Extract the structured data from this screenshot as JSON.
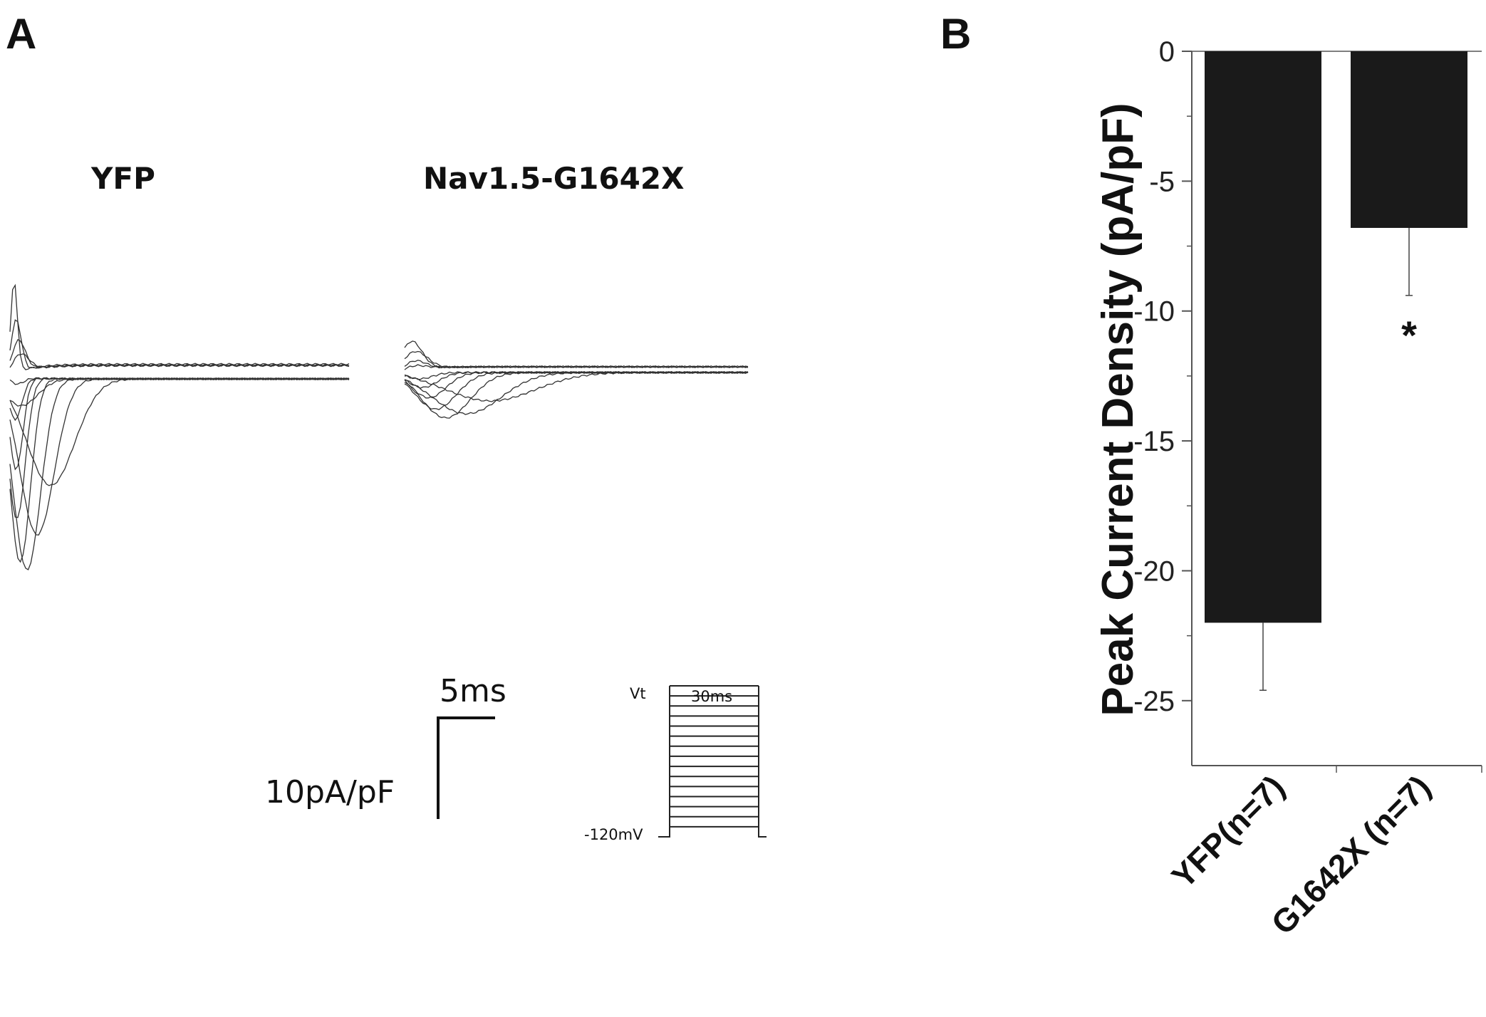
{
  "panels": {
    "a": {
      "letter": "A"
    },
    "b": {
      "letter": "B"
    }
  },
  "traces": {
    "left_title": "YFP",
    "right_title": "Nav1.5-G1642X"
  },
  "scale_bar": {
    "time_label": "5ms",
    "current_label": "10pA/pF"
  },
  "protocol": {
    "duration_label": "30ms",
    "top_label": "Vt",
    "holding_label": "-120mV"
  },
  "chart_data": {
    "type": "bar",
    "title": "",
    "xlabel": "",
    "ylabel": "Peak Current Density (pA/pF)",
    "categories": [
      "YFP(n=7)",
      "G1642X (n=7)"
    ],
    "values": [
      -22.0,
      -6.8
    ],
    "errors": [
      2.6,
      2.6
    ],
    "ylim": [
      -27.5,
      0
    ],
    "yticks": [
      0,
      -5,
      -10,
      -15,
      -20,
      -25
    ],
    "ytick_labels": [
      "0",
      "-5",
      "-10",
      "-15",
      "-20",
      "-25"
    ],
    "annotations": [
      {
        "category": "G1642X (n=7)",
        "text": "*"
      }
    ],
    "bar_color": "#1a1a1a",
    "grid": false
  }
}
